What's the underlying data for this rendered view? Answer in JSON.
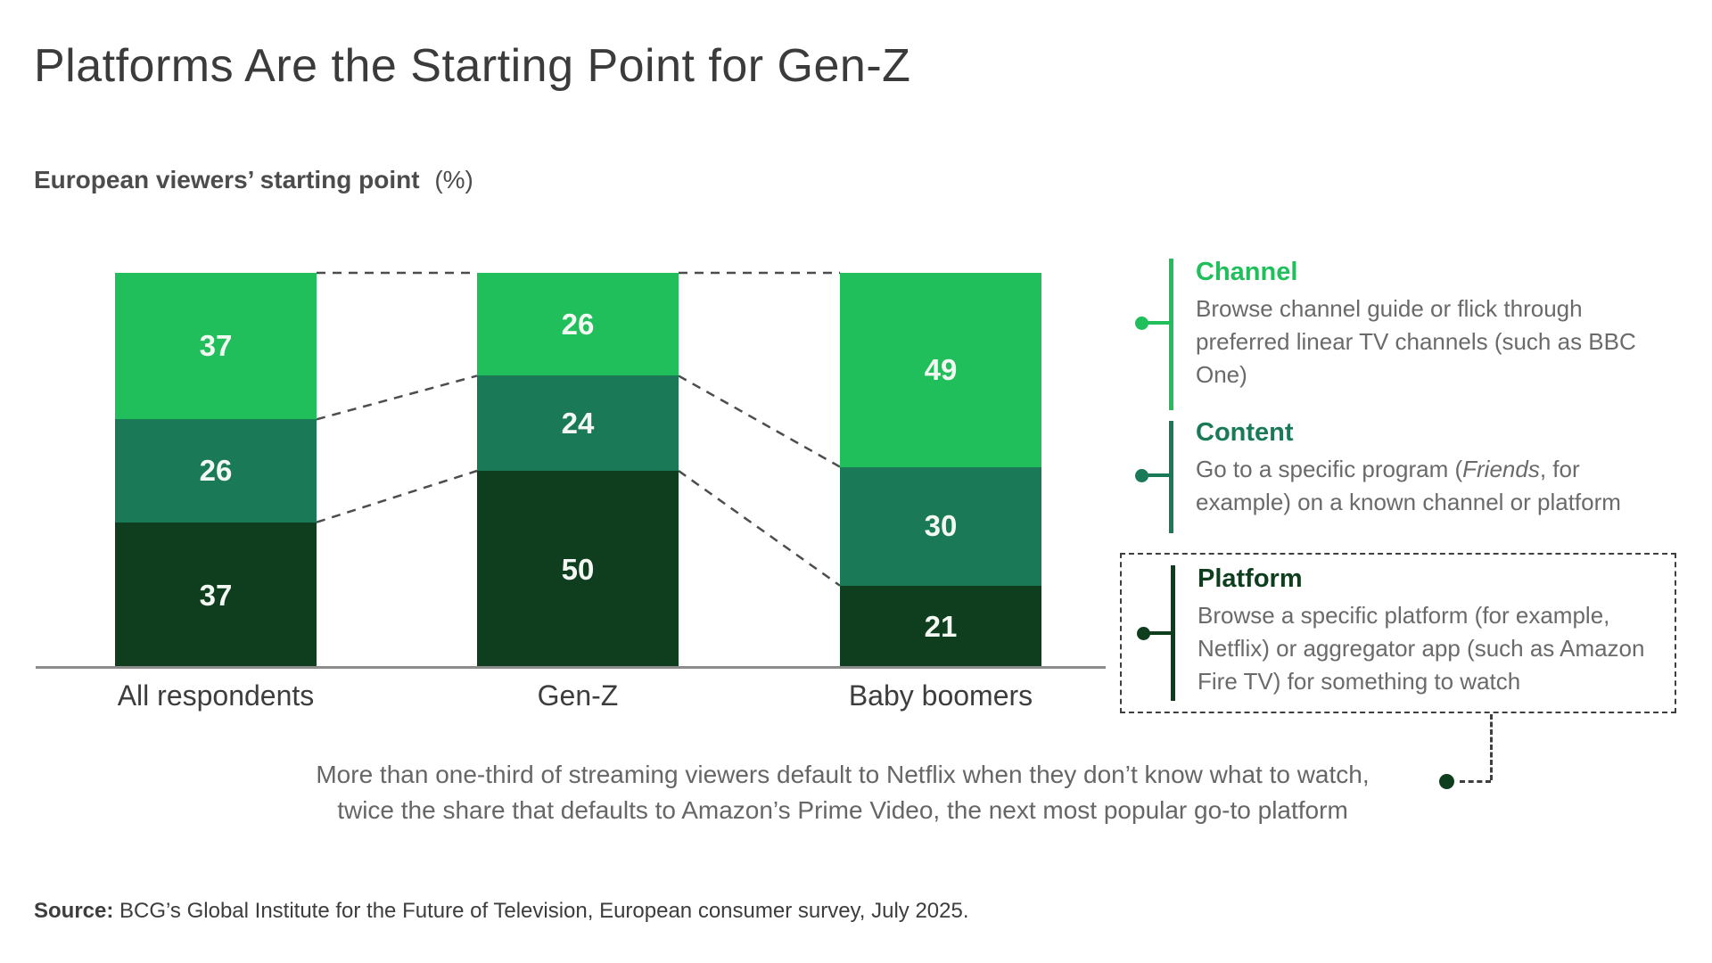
{
  "header": {
    "title": "Platforms Are the Starting Point for Gen-Z",
    "subtitle": "European viewers’ starting point",
    "subtitle_unit": "(%)"
  },
  "chart_data": {
    "type": "bar",
    "variant": "stacked-100-percent",
    "title": "European viewers’ starting point (%)",
    "categories": [
      "All respondents",
      "Gen-Z",
      "Baby boomers"
    ],
    "series": [
      {
        "name": "Channel",
        "color": "#21BE5C",
        "values": [
          37,
          26,
          49
        ]
      },
      {
        "name": "Content",
        "color": "#1A7A57",
        "values": [
          26,
          24,
          30
        ]
      },
      {
        "name": "Platform",
        "color": "#0E3E1D",
        "values": [
          37,
          50,
          21
        ]
      }
    ],
    "stack_order": "top-to-bottom",
    "value_unit": "%",
    "ylim": [
      0,
      100
    ],
    "grid": false,
    "value_label_color": "#f4f8f3",
    "connector_lines": "dashed lines join segment boundaries of adjacent bars",
    "connector_color": "#4d4d4d",
    "axis_color": "#8c8c8c"
  },
  "legend": {
    "items": [
      {
        "name": "Channel",
        "color": "#21BE5C",
        "description": "Browse channel guide or flick through preferred linear TV channels (such as BBC One)"
      },
      {
        "name": "Content",
        "color": "#1A7A57",
        "description_pre": "Go to a specific program (",
        "description_italic": "Friends",
        "description_post": ", for example) on a known channel or platform"
      },
      {
        "name": "Platform",
        "color": "#0E3E1D",
        "boxed": true,
        "description": "Browse a specific platform (for example, Netflix) or aggregator app (such as Amazon Fire TV) for something to watch"
      }
    ]
  },
  "annotation": {
    "line1": "More than one-third of streaming viewers default to Netflix when they don’t know what to watch,",
    "line2": "twice the share that defaults to Amazon’s Prime Video, the next most popular go-to platform"
  },
  "source": {
    "label": "Source:",
    "text": " BCG’s Global Institute for the Future of Television, European consumer survey, July 2025."
  }
}
